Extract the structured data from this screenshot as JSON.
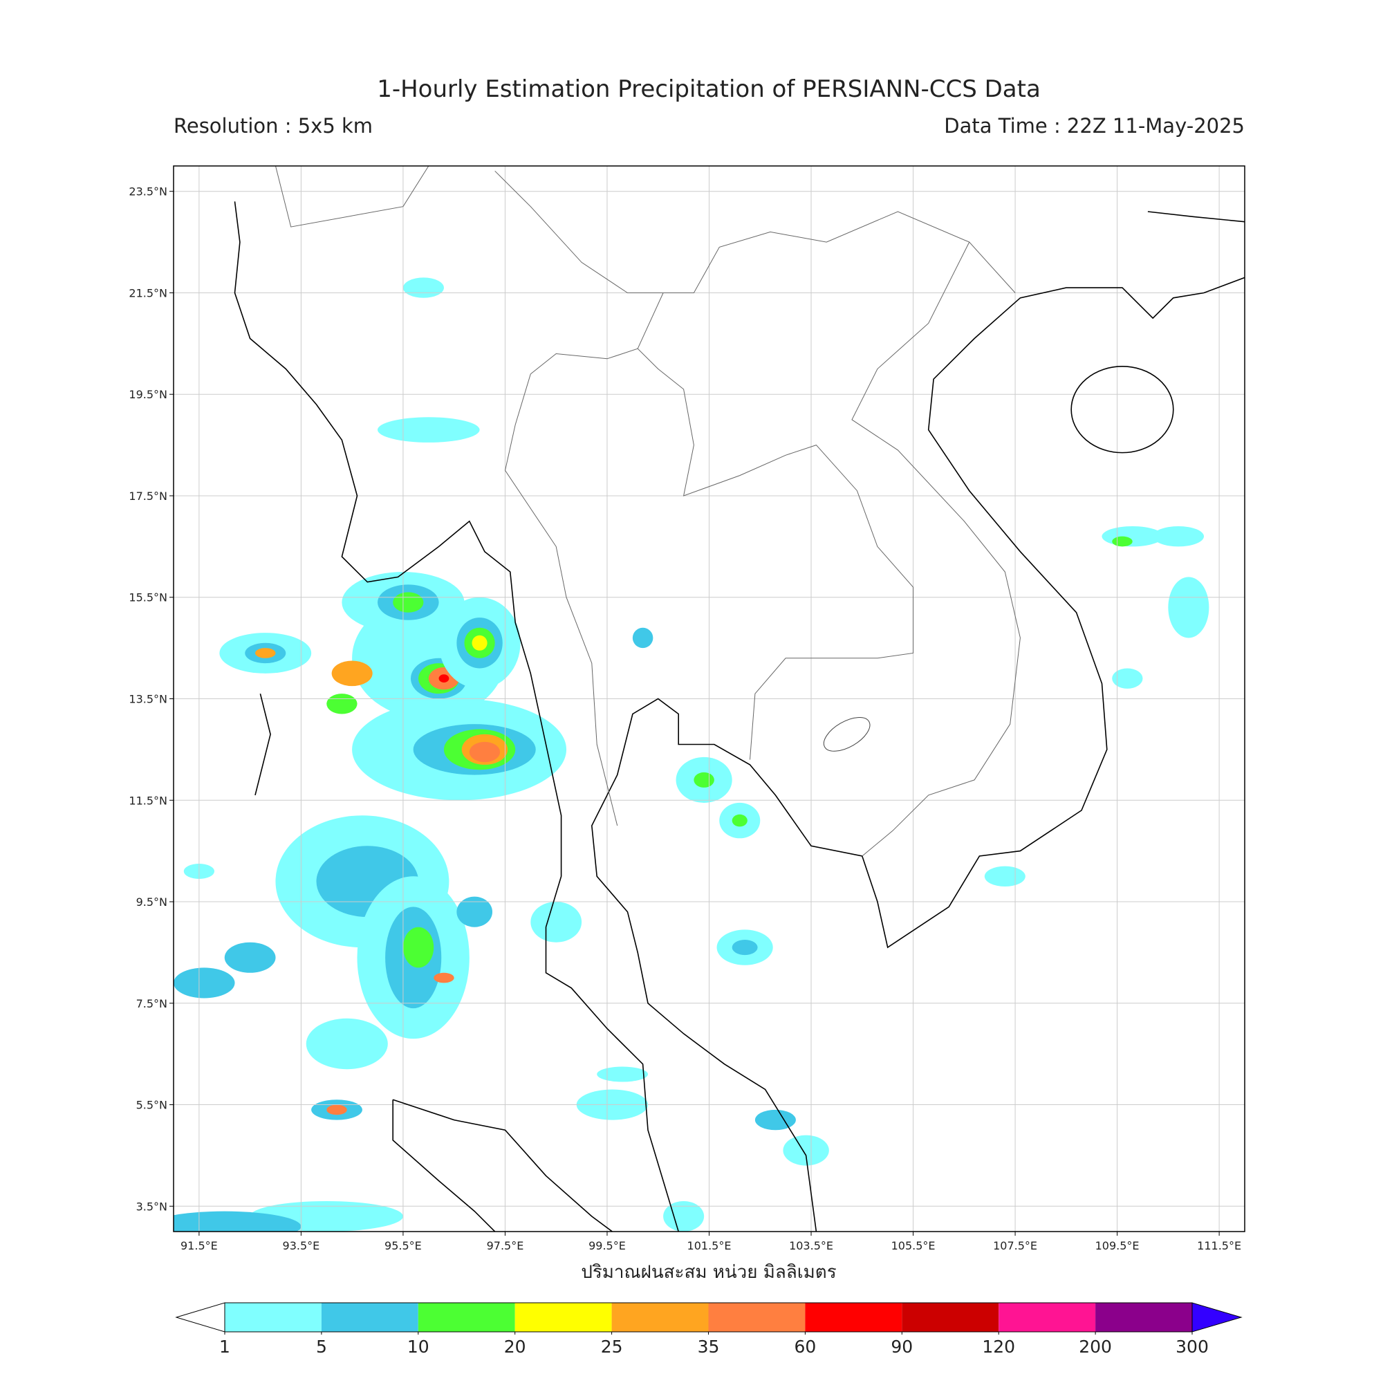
{
  "title": "1-Hourly Estimation Precipitation of PERSIANN-CCS Data",
  "subtitle_left": "Resolution : 5x5 km",
  "subtitle_right": "Data Time : 22Z 11-May-2025",
  "map": {
    "xlim": [
      91,
      112
    ],
    "ylim": [
      3,
      24
    ],
    "grid": true,
    "xticks": [
      {
        "value": 91.5,
        "label": "91.5°E"
      },
      {
        "value": 93.5,
        "label": "93.5°E"
      },
      {
        "value": 95.5,
        "label": "95.5°E"
      },
      {
        "value": 97.5,
        "label": "97.5°E"
      },
      {
        "value": 99.5,
        "label": "99.5°E"
      },
      {
        "value": 101.5,
        "label": "101.5°E"
      },
      {
        "value": 103.5,
        "label": "103.5°E"
      },
      {
        "value": 105.5,
        "label": "105.5°E"
      },
      {
        "value": 107.5,
        "label": "107.5°E"
      },
      {
        "value": 109.5,
        "label": "109.5°E"
      },
      {
        "value": 111.5,
        "label": "111.5°E"
      }
    ],
    "yticks": [
      {
        "value": 23.5,
        "label": "23.5°N"
      },
      {
        "value": 21.5,
        "label": "21.5°N"
      },
      {
        "value": 19.5,
        "label": "19.5°N"
      },
      {
        "value": 17.5,
        "label": "17.5°N"
      },
      {
        "value": 15.5,
        "label": "15.5°N"
      },
      {
        "value": 13.5,
        "label": "13.5°N"
      },
      {
        "value": 11.5,
        "label": "11.5°N"
      },
      {
        "value": 9.5,
        "label": "9.5°N"
      },
      {
        "value": 7.5,
        "label": "7.5°N"
      },
      {
        "value": 5.5,
        "label": "5.5°N"
      },
      {
        "value": 3.5,
        "label": "3.5°N"
      }
    ],
    "xlabel": "ปริมาณฝนสะสม หน่วย มิลลิเมตร"
  },
  "colorbar": {
    "levels": [
      1,
      5,
      10,
      20,
      25,
      35,
      60,
      90,
      120,
      200,
      300
    ],
    "colors": [
      "#80ffff",
      "#40c8e8",
      "#4cff33",
      "#ffff00",
      "#ffa520",
      "#ff7f40",
      "#ff0000",
      "#cc0000",
      "#ff1493",
      "#8b008b"
    ],
    "under_color": "#ffffff",
    "over_color": "#3300ff"
  }
}
